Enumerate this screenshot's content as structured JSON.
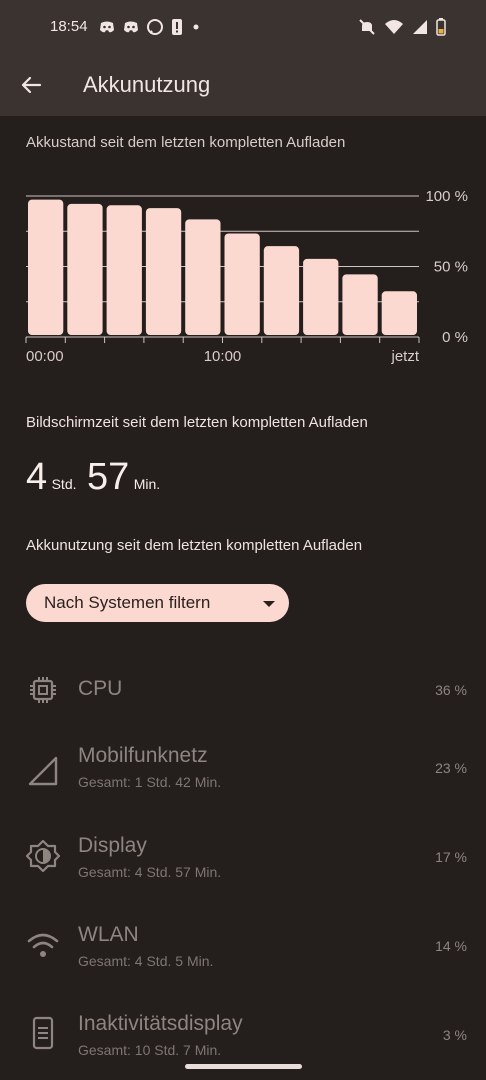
{
  "status": {
    "time": "18:54",
    "left_icons": [
      "discord-icon",
      "discord-icon",
      "whatsapp-icon",
      "alert-icon",
      "dot-icon"
    ],
    "right_icons": [
      "mute-icon",
      "wifi-icon",
      "signal-icon",
      "battery-icon"
    ]
  },
  "header": {
    "title": "Akkunutzung"
  },
  "battery_section": {
    "label": "Akkustand seit dem letzten kompletten Aufladen"
  },
  "chart_data": {
    "type": "bar",
    "categories": [
      "",
      "",
      "",
      "",
      "",
      "",
      "",
      "",
      "",
      ""
    ],
    "values": [
      96,
      93,
      92,
      90,
      82,
      72,
      63,
      54,
      43,
      31
    ],
    "y_ticks": [
      "100 %",
      "50 %",
      "0 %"
    ],
    "x_ticks": [
      "00:00",
      "10:00",
      "jetzt"
    ],
    "ylim": [
      0,
      100
    ],
    "bar_color": "#fbd9d1",
    "gridlines": true
  },
  "screen_section": {
    "label": "Bildschirmzeit seit dem letzten kompletten Aufladen",
    "hours": "4",
    "hours_unit": "Std.",
    "minutes": "57",
    "minutes_unit": "Min."
  },
  "usage_section": {
    "label": "Akkunutzung seit dem letzten kompletten Aufladen"
  },
  "filter": {
    "label": "Nach Systemen filtern"
  },
  "items": [
    {
      "name": "CPU",
      "detail": "",
      "percent": "36 %",
      "icon": "cpu-icon"
    },
    {
      "name": "Mobilfunknetz",
      "detail": "Gesamt: 1 Std. 42 Min.",
      "percent": "23 %",
      "icon": "cellular-icon"
    },
    {
      "name": "Display",
      "detail": "Gesamt: 4 Std. 57 Min.",
      "percent": "17 %",
      "icon": "display-brightness-icon"
    },
    {
      "name": "WLAN",
      "detail": "Gesamt: 4 Std. 5 Min.",
      "percent": "14 %",
      "icon": "wifi-icon"
    },
    {
      "name": "Inaktivitätsdisplay",
      "detail": "Gesamt: 10 Std. 7 Min.",
      "percent": "3 %",
      "icon": "phone-icon"
    }
  ]
}
